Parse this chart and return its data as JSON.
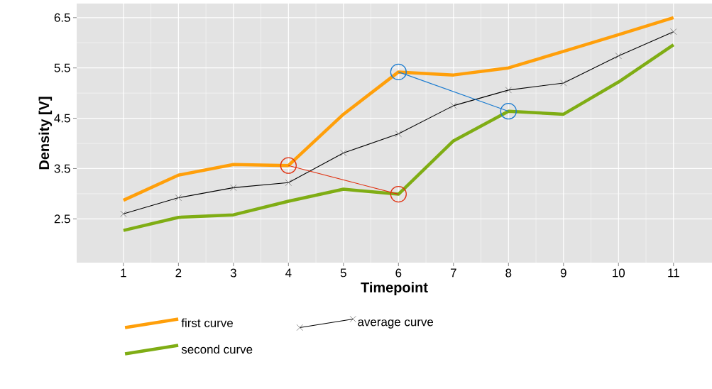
{
  "chart_data": {
    "type": "line",
    "xlabel": "Timepoint",
    "ylabel": "Density [V]",
    "x": [
      1,
      2,
      3,
      4,
      5,
      6,
      7,
      8,
      9,
      10,
      11
    ],
    "xlim": [
      0.15,
      11.7
    ],
    "ylim": [
      1.63,
      6.78
    ],
    "xticks": [
      1,
      2,
      3,
      4,
      5,
      6,
      7,
      8,
      9,
      10,
      11
    ],
    "yticks": [
      2.5,
      3.5,
      4.5,
      5.5,
      6.5
    ],
    "grid": true,
    "legend": "bottom",
    "series": [
      {
        "name": "first curve",
        "color": "#ff9f0a",
        "marker": "none",
        "values": [
          2.87,
          3.37,
          3.58,
          3.56,
          4.58,
          5.42,
          5.36,
          5.5,
          5.83,
          6.16,
          6.5
        ]
      },
      {
        "name": "second curve",
        "color": "#7fad14",
        "marker": "none",
        "values": [
          2.27,
          2.53,
          2.58,
          2.85,
          3.09,
          2.99,
          4.05,
          4.64,
          4.58,
          5.22,
          5.96
        ]
      },
      {
        "name": "average curve",
        "color": "#000000",
        "marker": "cross",
        "values": [
          2.6,
          2.92,
          3.12,
          3.22,
          3.81,
          4.19,
          4.75,
          5.06,
          5.2,
          5.74,
          6.22
        ]
      },
      {
        "color": "#e0300f",
        "marker": "circle",
        "x": [
          4,
          6
        ],
        "values": [
          3.56,
          2.99
        ]
      },
      {
        "color": "#1a7bd0",
        "marker": "circle",
        "x": [
          6,
          8
        ],
        "values": [
          5.42,
          4.64
        ]
      }
    ]
  }
}
